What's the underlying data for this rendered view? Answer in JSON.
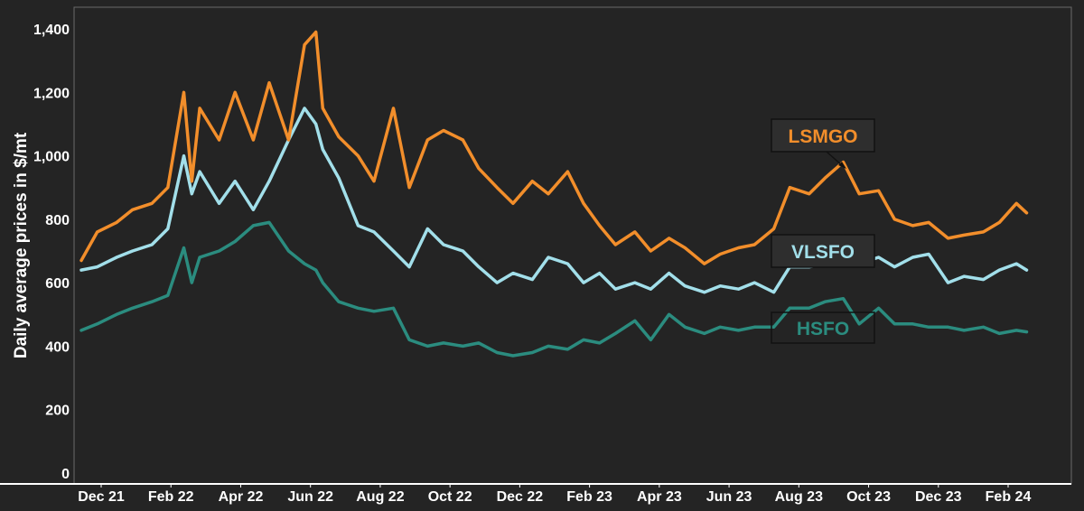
{
  "chart_data": {
    "type": "line",
    "title": "",
    "ylabel": "Daily average prices in $/mt",
    "xlabel": "",
    "ylim": [
      0,
      1400
    ],
    "yticks": [
      0,
      200,
      400,
      600,
      800,
      1000,
      1200,
      1400
    ],
    "ytick_labels": [
      "0",
      "200",
      "400",
      "600",
      "800",
      "1,000",
      "1,200",
      "1,400"
    ],
    "x_range": [
      "2021-12-01",
      "2024-03-31"
    ],
    "xticks": [
      "Dec 21",
      "Feb 22",
      "Apr 22",
      "Jun 22",
      "Aug 22",
      "Oct 22",
      "Dec 22",
      "Feb 23",
      "Apr 23",
      "Jun 23",
      "Aug 23",
      "Oct 23",
      "Dec 23",
      "Feb 24"
    ],
    "x": [
      "2021-12-01",
      "2021-12-15",
      "2022-01-01",
      "2022-01-15",
      "2022-02-01",
      "2022-02-15",
      "2022-03-01",
      "2022-03-08",
      "2022-03-15",
      "2022-04-01",
      "2022-04-15",
      "2022-05-01",
      "2022-05-15",
      "2022-06-01",
      "2022-06-15",
      "2022-06-25",
      "2022-07-01",
      "2022-07-15",
      "2022-08-01",
      "2022-08-15",
      "2022-09-01",
      "2022-09-15",
      "2022-10-01",
      "2022-10-15",
      "2022-11-01",
      "2022-11-15",
      "2022-12-01",
      "2022-12-15",
      "2023-01-01",
      "2023-01-15",
      "2023-02-01",
      "2023-02-15",
      "2023-03-01",
      "2023-03-15",
      "2023-04-01",
      "2023-04-15",
      "2023-05-01",
      "2023-05-15",
      "2023-06-01",
      "2023-06-15",
      "2023-07-01",
      "2023-07-15",
      "2023-08-01",
      "2023-08-15",
      "2023-09-01",
      "2023-09-15",
      "2023-10-01",
      "2023-10-15",
      "2023-11-01",
      "2023-11-15",
      "2023-12-01",
      "2023-12-15",
      "2024-01-01",
      "2024-01-15",
      "2024-02-01",
      "2024-02-15",
      "2024-03-01",
      "2024-03-10"
    ],
    "series": [
      {
        "name": "LSMGO",
        "color": "#f28e2b",
        "values": [
          670,
          760,
          790,
          830,
          850,
          900,
          1200,
          920,
          1150,
          1050,
          1200,
          1050,
          1230,
          1050,
          1350,
          1390,
          1150,
          1060,
          1000,
          920,
          1150,
          900,
          1050,
          1080,
          1050,
          960,
          900,
          850,
          920,
          880,
          950,
          850,
          780,
          720,
          760,
          700,
          740,
          710,
          660,
          690,
          710,
          720,
          770,
          900,
          880,
          930,
          980,
          880,
          890,
          800,
          780,
          790,
          740,
          750,
          760,
          790,
          850,
          820
        ]
      },
      {
        "name": "VLSFO",
        "color": "#a2dfea",
        "values": [
          640,
          650,
          680,
          700,
          720,
          770,
          1000,
          880,
          950,
          850,
          920,
          830,
          920,
          1050,
          1150,
          1100,
          1020,
          930,
          780,
          760,
          700,
          650,
          770,
          720,
          700,
          650,
          600,
          630,
          610,
          680,
          660,
          600,
          630,
          580,
          600,
          580,
          630,
          590,
          570,
          590,
          580,
          600,
          570,
          650,
          650,
          660,
          680,
          660,
          680,
          650,
          680,
          690,
          600,
          620,
          610,
          640,
          660,
          640
        ]
      },
      {
        "name": "HSFO",
        "color": "#2b8c7f",
        "values": [
          450,
          470,
          500,
          520,
          540,
          560,
          710,
          600,
          680,
          700,
          730,
          780,
          790,
          700,
          660,
          640,
          600,
          540,
          520,
          510,
          520,
          420,
          400,
          410,
          400,
          410,
          380,
          370,
          380,
          400,
          390,
          420,
          410,
          440,
          480,
          420,
          500,
          460,
          440,
          460,
          450,
          460,
          460,
          520,
          520,
          540,
          550,
          470,
          520,
          470,
          470,
          460,
          460,
          450,
          460,
          440,
          450,
          445
        ]
      }
    ],
    "annotations": [
      {
        "text": "LSMGO",
        "series": "LSMGO"
      },
      {
        "text": "VLSFO",
        "series": "VLSFO"
      },
      {
        "text": "HSFO",
        "series": "HSFO"
      }
    ],
    "grid": false,
    "legend": "none"
  }
}
